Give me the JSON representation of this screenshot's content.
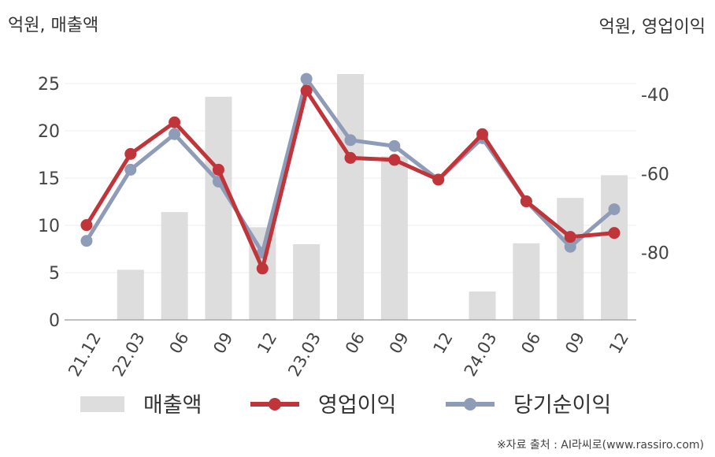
{
  "chart_data": {
    "type": "bar+line",
    "categories": [
      "21.12",
      "22.03",
      "06",
      "09",
      "12",
      "23.03",
      "06",
      "09",
      "12",
      "24.03",
      "06",
      "09",
      "12"
    ],
    "left_axis": {
      "unit_label": "억원, 매출액",
      "ylim": [
        0,
        28
      ],
      "ticks": [
        0,
        5,
        10,
        15,
        20,
        25
      ]
    },
    "right_axis": {
      "unit_label": "억원, 영업이익",
      "ylim": [
        -97,
        -30
      ],
      "ticks": [
        -40,
        -60,
        -80
      ]
    },
    "series": [
      {
        "name": "매출액",
        "type": "bar",
        "axis": "left",
        "color": "#dddddd",
        "values": [
          0,
          5.3,
          11.4,
          23.6,
          9.8,
          8.0,
          26.0,
          17.3,
          0,
          3.0,
          8.1,
          12.9,
          15.3
        ]
      },
      {
        "name": "영업이익",
        "type": "line",
        "axis": "right",
        "color": "#c0353a",
        "values": [
          -73,
          -55,
          -47,
          -59,
          -84,
          -39,
          -56,
          -56.5,
          -61.5,
          -50,
          -67,
          -76,
          -75
        ]
      },
      {
        "name": "당기순이익",
        "type": "line",
        "axis": "right",
        "color": "#8f9cb7",
        "values": [
          -77,
          -59,
          -50,
          -62,
          -80,
          -36,
          -51.5,
          -53,
          -61.5,
          -51,
          -67,
          -78.5,
          -69
        ]
      }
    ],
    "grid": true,
    "legend_position": "bottom"
  },
  "source": "※자료 출처 : AI라씨로(www.rassiro.com)"
}
